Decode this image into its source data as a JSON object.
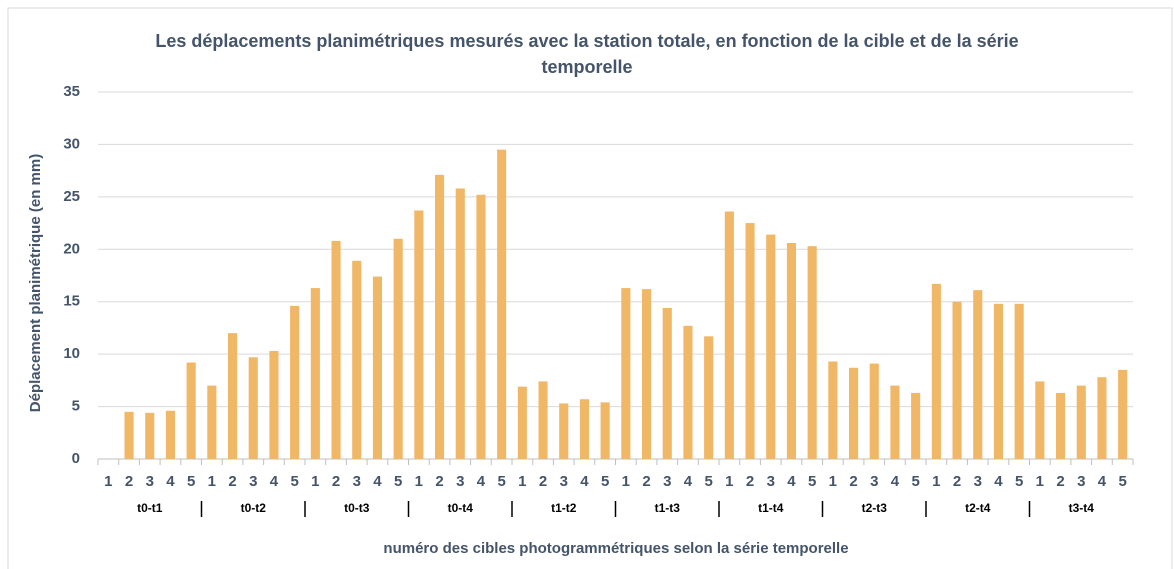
{
  "chart_data": {
    "type": "bar",
    "title": "Les déplacements planimétriques mesurés avec la station totale, en fonction de la cible et de la série temporelle",
    "ylabel": "Déplacement planimétrique  (en mm)",
    "xlabel": "numéro des cibles photogrammétriques selon la série temporelle",
    "groups": [
      "t0-t1",
      "t0-t2",
      "t0-t3",
      "t0-t4",
      "t1-t2",
      "t1-t3",
      "t1-t4",
      "t2-t3",
      "t2-t4",
      "t3-t4"
    ],
    "categories": [
      "1",
      "2",
      "3",
      "4",
      "5",
      "1",
      "2",
      "3",
      "4",
      "5",
      "1",
      "2",
      "3",
      "4",
      "5",
      "1",
      "2",
      "3",
      "4",
      "5",
      "1",
      "2",
      "3",
      "4",
      "5",
      "1",
      "2",
      "3",
      "4",
      "5",
      "1",
      "2",
      "3",
      "4",
      "5",
      "1",
      "2",
      "3",
      "4",
      "5",
      "1",
      "2",
      "3",
      "4",
      "5",
      "1",
      "2",
      "3",
      "4",
      "5"
    ],
    "values": [
      0,
      4.5,
      4.4,
      4.6,
      9.2,
      7.0,
      12.0,
      9.7,
      10.3,
      14.6,
      16.3,
      20.8,
      18.9,
      17.4,
      21.0,
      23.7,
      27.1,
      25.8,
      25.2,
      29.5,
      6.9,
      7.4,
      5.3,
      5.7,
      5.4,
      16.3,
      16.2,
      14.4,
      12.7,
      11.7,
      23.6,
      22.5,
      21.4,
      20.6,
      20.3,
      9.3,
      8.7,
      9.1,
      7.0,
      6.3,
      16.7,
      15.0,
      16.1,
      14.8,
      14.8,
      7.4,
      6.3,
      7.0,
      7.8,
      8.5
    ],
    "color": "#f0b766",
    "ylim": [
      0,
      35
    ],
    "yticks": [
      0,
      5,
      10,
      15,
      20,
      25,
      30,
      35
    ],
    "grid": true
  }
}
